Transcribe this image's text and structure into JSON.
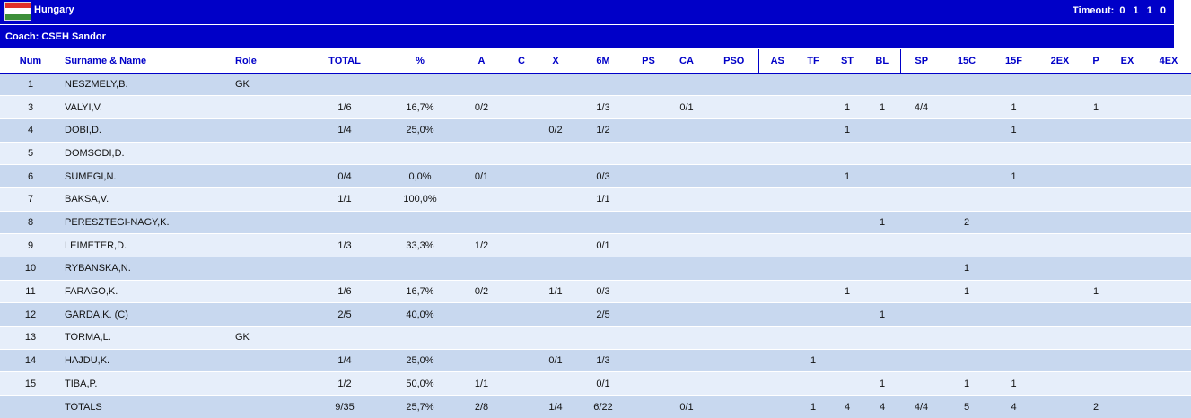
{
  "team": {
    "name": "Hungary",
    "flag_colors": [
      "#e0302a",
      "#ffffff",
      "#3d8f3a"
    ],
    "timeout_label": "Timeout:",
    "timeout_values": "0 1 1 0"
  },
  "coach": {
    "text": "Coach: CSEH Sandor"
  },
  "columns": [
    "Num",
    "Surname & Name",
    "Role",
    "TOTAL",
    "%",
    "A",
    "C",
    "X",
    "6M",
    "PS",
    "CA",
    "PSO",
    "AS",
    "TF",
    "ST",
    "BL",
    "SP",
    "15C",
    "15F",
    "2EX",
    "P",
    "EX",
    "4EX"
  ],
  "rows": [
    [
      "1",
      "NESZMELY,B.",
      "GK",
      "",
      "",
      "",
      "",
      "",
      "",
      "",
      "",
      "",
      "",
      "",
      "",
      "",
      "",
      "",
      "",
      "",
      "",
      "",
      ""
    ],
    [
      "3",
      "VALYI,V.",
      "",
      "1/6",
      "16,7%",
      "0/2",
      "",
      "",
      "1/3",
      "",
      "0/1",
      "",
      "",
      "",
      "1",
      "1",
      "4/4",
      "",
      "1",
      "",
      "1",
      "",
      ""
    ],
    [
      "4",
      "DOBI,D.",
      "",
      "1/4",
      "25,0%",
      "",
      "",
      "0/2",
      "1/2",
      "",
      "",
      "",
      "",
      "",
      "1",
      "",
      "",
      "",
      "1",
      "",
      "",
      "",
      ""
    ],
    [
      "5",
      "DOMSODI,D.",
      "",
      "",
      "",
      "",
      "",
      "",
      "",
      "",
      "",
      "",
      "",
      "",
      "",
      "",
      "",
      "",
      "",
      "",
      "",
      "",
      ""
    ],
    [
      "6",
      "SUMEGI,N.",
      "",
      "0/4",
      "0,0%",
      "0/1",
      "",
      "",
      "0/3",
      "",
      "",
      "",
      "",
      "",
      "1",
      "",
      "",
      "",
      "1",
      "",
      "",
      "",
      ""
    ],
    [
      "7",
      "BAKSA,V.",
      "",
      "1/1",
      "100,0%",
      "",
      "",
      "",
      "1/1",
      "",
      "",
      "",
      "",
      "",
      "",
      "",
      "",
      "",
      "",
      "",
      "",
      "",
      ""
    ],
    [
      "8",
      "PERESZTEGI-NAGY,K.",
      "",
      "",
      "",
      "",
      "",
      "",
      "",
      "",
      "",
      "",
      "",
      "",
      "",
      "1",
      "",
      "2",
      "",
      "",
      "",
      "",
      ""
    ],
    [
      "9",
      "LEIMETER,D.",
      "",
      "1/3",
      "33,3%",
      "1/2",
      "",
      "",
      "0/1",
      "",
      "",
      "",
      "",
      "",
      "",
      "",
      "",
      "",
      "",
      "",
      "",
      "",
      ""
    ],
    [
      "10",
      "RYBANSKA,N.",
      "",
      "",
      "",
      "",
      "",
      "",
      "",
      "",
      "",
      "",
      "",
      "",
      "",
      "",
      "",
      "1",
      "",
      "",
      "",
      "",
      ""
    ],
    [
      "11",
      "FARAGO,K.",
      "",
      "1/6",
      "16,7%",
      "0/2",
      "",
      "1/1",
      "0/3",
      "",
      "",
      "",
      "",
      "",
      "1",
      "",
      "",
      "1",
      "",
      "",
      "1",
      "",
      ""
    ],
    [
      "12",
      "GARDA,K.  (C)",
      "",
      "2/5",
      "40,0%",
      "",
      "",
      "",
      "2/5",
      "",
      "",
      "",
      "",
      "",
      "",
      "1",
      "",
      "",
      "",
      "",
      "",
      "",
      ""
    ],
    [
      "13",
      "TORMA,L.",
      "GK",
      "",
      "",
      "",
      "",
      "",
      "",
      "",
      "",
      "",
      "",
      "",
      "",
      "",
      "",
      "",
      "",
      "",
      "",
      "",
      ""
    ],
    [
      "14",
      "HAJDU,K.",
      "",
      "1/4",
      "25,0%",
      "",
      "",
      "0/1",
      "1/3",
      "",
      "",
      "",
      "",
      "1",
      "",
      "",
      "",
      "",
      "",
      "",
      "",
      "",
      ""
    ],
    [
      "15",
      "TIBA,P.",
      "",
      "1/2",
      "50,0%",
      "1/1",
      "",
      "",
      "0/1",
      "",
      "",
      "",
      "",
      "",
      "",
      "1",
      "",
      "1",
      "1",
      "",
      "",
      "",
      ""
    ],
    [
      "",
      "TOTALS",
      "",
      "9/35",
      "25,7%",
      "2/8",
      "",
      "1/4",
      "6/22",
      "",
      "0/1",
      "",
      "",
      "1",
      "4",
      "4",
      "4/4",
      "5",
      "4",
      "",
      "2",
      "",
      ""
    ]
  ]
}
